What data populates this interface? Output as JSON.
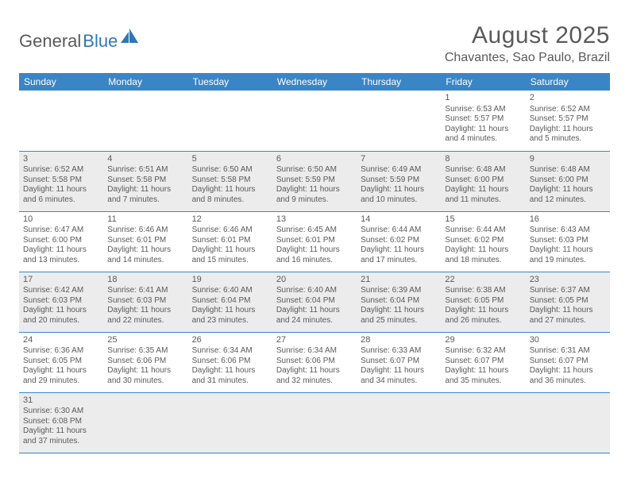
{
  "brand": {
    "general": "General",
    "blue": "Blue"
  },
  "title": "August 2025",
  "location": "Chavantes, Sao Paulo, Brazil",
  "colors": {
    "header_bg": "#3a85c6",
    "header_text": "#ffffff",
    "shaded_row": "#ececec",
    "border": "#3a85c6",
    "text": "#5a5a5a",
    "logo_blue": "#2f78b8"
  },
  "dayHeaders": [
    "Sunday",
    "Monday",
    "Tuesday",
    "Wednesday",
    "Thursday",
    "Friday",
    "Saturday"
  ],
  "weeks": [
    {
      "shaded": false,
      "days": [
        null,
        null,
        null,
        null,
        null,
        {
          "n": "1",
          "sr": "Sunrise: 6:53 AM",
          "ss": "Sunset: 5:57 PM",
          "d1": "Daylight: 11 hours",
          "d2": "and 4 minutes."
        },
        {
          "n": "2",
          "sr": "Sunrise: 6:52 AM",
          "ss": "Sunset: 5:57 PM",
          "d1": "Daylight: 11 hours",
          "d2": "and 5 minutes."
        }
      ]
    },
    {
      "shaded": true,
      "days": [
        {
          "n": "3",
          "sr": "Sunrise: 6:52 AM",
          "ss": "Sunset: 5:58 PM",
          "d1": "Daylight: 11 hours",
          "d2": "and 6 minutes."
        },
        {
          "n": "4",
          "sr": "Sunrise: 6:51 AM",
          "ss": "Sunset: 5:58 PM",
          "d1": "Daylight: 11 hours",
          "d2": "and 7 minutes."
        },
        {
          "n": "5",
          "sr": "Sunrise: 6:50 AM",
          "ss": "Sunset: 5:58 PM",
          "d1": "Daylight: 11 hours",
          "d2": "and 8 minutes."
        },
        {
          "n": "6",
          "sr": "Sunrise: 6:50 AM",
          "ss": "Sunset: 5:59 PM",
          "d1": "Daylight: 11 hours",
          "d2": "and 9 minutes."
        },
        {
          "n": "7",
          "sr": "Sunrise: 6:49 AM",
          "ss": "Sunset: 5:59 PM",
          "d1": "Daylight: 11 hours",
          "d2": "and 10 minutes."
        },
        {
          "n": "8",
          "sr": "Sunrise: 6:48 AM",
          "ss": "Sunset: 6:00 PM",
          "d1": "Daylight: 11 hours",
          "d2": "and 11 minutes."
        },
        {
          "n": "9",
          "sr": "Sunrise: 6:48 AM",
          "ss": "Sunset: 6:00 PM",
          "d1": "Daylight: 11 hours",
          "d2": "and 12 minutes."
        }
      ]
    },
    {
      "shaded": false,
      "days": [
        {
          "n": "10",
          "sr": "Sunrise: 6:47 AM",
          "ss": "Sunset: 6:00 PM",
          "d1": "Daylight: 11 hours",
          "d2": "and 13 minutes."
        },
        {
          "n": "11",
          "sr": "Sunrise: 6:46 AM",
          "ss": "Sunset: 6:01 PM",
          "d1": "Daylight: 11 hours",
          "d2": "and 14 minutes."
        },
        {
          "n": "12",
          "sr": "Sunrise: 6:46 AM",
          "ss": "Sunset: 6:01 PM",
          "d1": "Daylight: 11 hours",
          "d2": "and 15 minutes."
        },
        {
          "n": "13",
          "sr": "Sunrise: 6:45 AM",
          "ss": "Sunset: 6:01 PM",
          "d1": "Daylight: 11 hours",
          "d2": "and 16 minutes."
        },
        {
          "n": "14",
          "sr": "Sunrise: 6:44 AM",
          "ss": "Sunset: 6:02 PM",
          "d1": "Daylight: 11 hours",
          "d2": "and 17 minutes."
        },
        {
          "n": "15",
          "sr": "Sunrise: 6:44 AM",
          "ss": "Sunset: 6:02 PM",
          "d1": "Daylight: 11 hours",
          "d2": "and 18 minutes."
        },
        {
          "n": "16",
          "sr": "Sunrise: 6:43 AM",
          "ss": "Sunset: 6:03 PM",
          "d1": "Daylight: 11 hours",
          "d2": "and 19 minutes."
        }
      ]
    },
    {
      "shaded": true,
      "days": [
        {
          "n": "17",
          "sr": "Sunrise: 6:42 AM",
          "ss": "Sunset: 6:03 PM",
          "d1": "Daylight: 11 hours",
          "d2": "and 20 minutes."
        },
        {
          "n": "18",
          "sr": "Sunrise: 6:41 AM",
          "ss": "Sunset: 6:03 PM",
          "d1": "Daylight: 11 hours",
          "d2": "and 22 minutes."
        },
        {
          "n": "19",
          "sr": "Sunrise: 6:40 AM",
          "ss": "Sunset: 6:04 PM",
          "d1": "Daylight: 11 hours",
          "d2": "and 23 minutes."
        },
        {
          "n": "20",
          "sr": "Sunrise: 6:40 AM",
          "ss": "Sunset: 6:04 PM",
          "d1": "Daylight: 11 hours",
          "d2": "and 24 minutes."
        },
        {
          "n": "21",
          "sr": "Sunrise: 6:39 AM",
          "ss": "Sunset: 6:04 PM",
          "d1": "Daylight: 11 hours",
          "d2": "and 25 minutes."
        },
        {
          "n": "22",
          "sr": "Sunrise: 6:38 AM",
          "ss": "Sunset: 6:05 PM",
          "d1": "Daylight: 11 hours",
          "d2": "and 26 minutes."
        },
        {
          "n": "23",
          "sr": "Sunrise: 6:37 AM",
          "ss": "Sunset: 6:05 PM",
          "d1": "Daylight: 11 hours",
          "d2": "and 27 minutes."
        }
      ]
    },
    {
      "shaded": false,
      "days": [
        {
          "n": "24",
          "sr": "Sunrise: 6:36 AM",
          "ss": "Sunset: 6:05 PM",
          "d1": "Daylight: 11 hours",
          "d2": "and 29 minutes."
        },
        {
          "n": "25",
          "sr": "Sunrise: 6:35 AM",
          "ss": "Sunset: 6:06 PM",
          "d1": "Daylight: 11 hours",
          "d2": "and 30 minutes."
        },
        {
          "n": "26",
          "sr": "Sunrise: 6:34 AM",
          "ss": "Sunset: 6:06 PM",
          "d1": "Daylight: 11 hours",
          "d2": "and 31 minutes."
        },
        {
          "n": "27",
          "sr": "Sunrise: 6:34 AM",
          "ss": "Sunset: 6:06 PM",
          "d1": "Daylight: 11 hours",
          "d2": "and 32 minutes."
        },
        {
          "n": "28",
          "sr": "Sunrise: 6:33 AM",
          "ss": "Sunset: 6:07 PM",
          "d1": "Daylight: 11 hours",
          "d2": "and 34 minutes."
        },
        {
          "n": "29",
          "sr": "Sunrise: 6:32 AM",
          "ss": "Sunset: 6:07 PM",
          "d1": "Daylight: 11 hours",
          "d2": "and 35 minutes."
        },
        {
          "n": "30",
          "sr": "Sunrise: 6:31 AM",
          "ss": "Sunset: 6:07 PM",
          "d1": "Daylight: 11 hours",
          "d2": "and 36 minutes."
        }
      ]
    },
    {
      "shaded": true,
      "days": [
        {
          "n": "31",
          "sr": "Sunrise: 6:30 AM",
          "ss": "Sunset: 6:08 PM",
          "d1": "Daylight: 11 hours",
          "d2": "and 37 minutes."
        },
        null,
        null,
        null,
        null,
        null,
        null
      ]
    }
  ]
}
